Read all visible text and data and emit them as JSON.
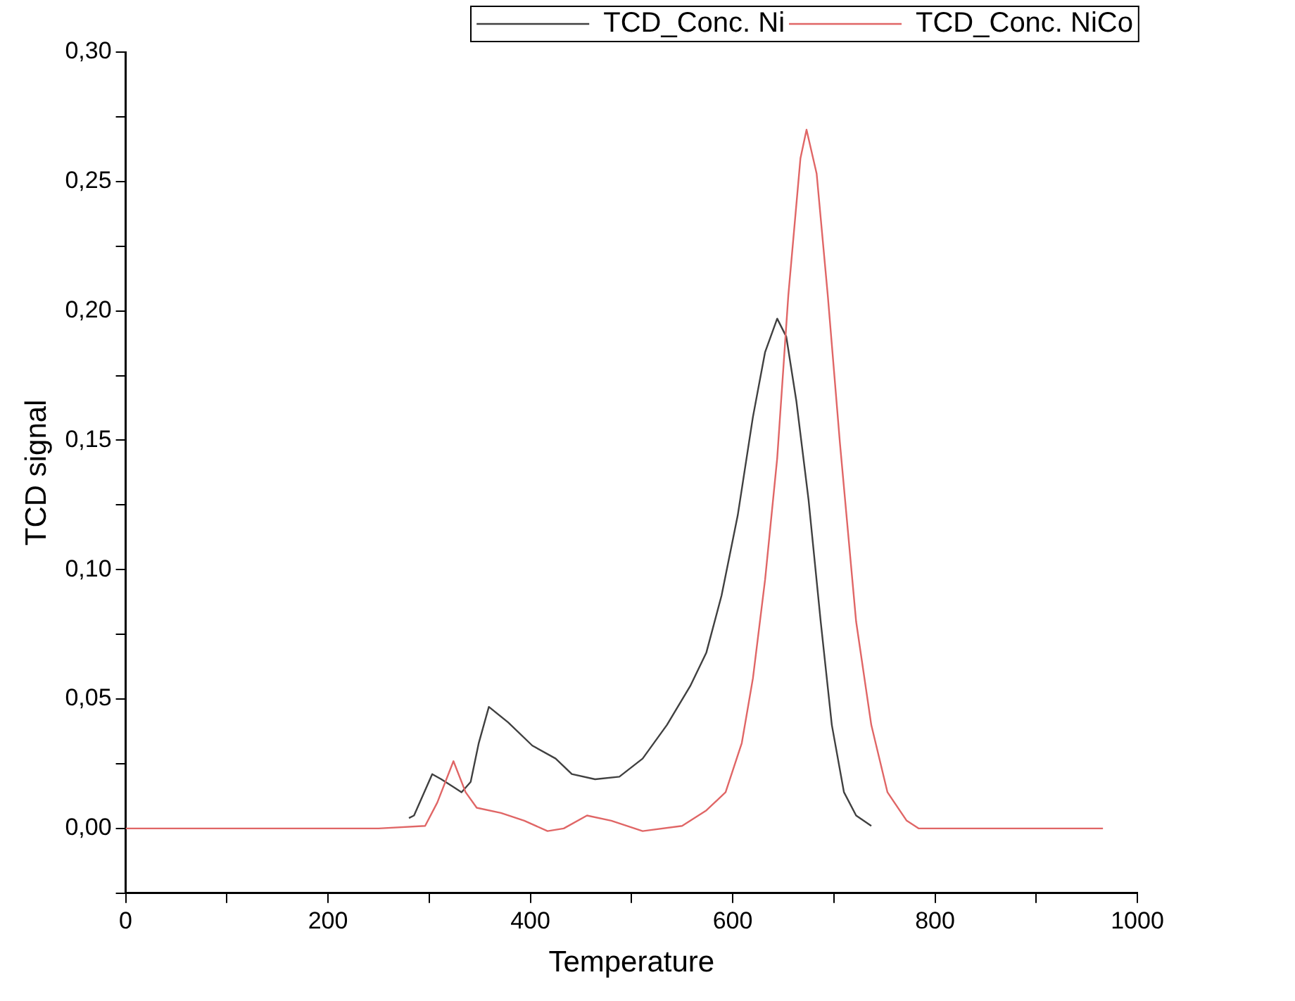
{
  "chart_data": {
    "type": "line",
    "xlabel": "Temperature",
    "ylabel": "TCD signal",
    "xlim": [
      0,
      1000
    ],
    "ylim": [
      -0.025,
      0.3
    ],
    "xticks": [
      0,
      {
        "value": 100,
        "label": null
      },
      200,
      {
        "value": 300,
        "label": null
      },
      400,
      {
        "value": 500,
        "label": null
      },
      600,
      {
        "value": 700,
        "label": null
      },
      800,
      {
        "value": 900,
        "label": null
      },
      1000
    ],
    "yticks": [
      {
        "value": -0.025,
        "label": null
      },
      {
        "value": 0,
        "label": "0,00"
      },
      {
        "value": 0.025,
        "label": null
      },
      {
        "value": 0.05,
        "label": "0,05"
      },
      {
        "value": 0.075,
        "label": null
      },
      {
        "value": 0.1,
        "label": "0,10"
      },
      {
        "value": 0.125,
        "label": null
      },
      {
        "value": 0.15,
        "label": "0,15"
      },
      {
        "value": 0.175,
        "label": null
      },
      {
        "value": 0.2,
        "label": "0,20"
      },
      {
        "value": 0.225,
        "label": null
      },
      {
        "value": 0.25,
        "label": "0,25"
      },
      {
        "value": 0.275,
        "label": null
      },
      {
        "value": 0.3,
        "label": "0,30"
      }
    ],
    "grid": false,
    "legend": "top right",
    "marker": "none",
    "line_style": "solid",
    "series": [
      {
        "name": "TCD_Conc. Ni",
        "color": "#404040",
        "x": [
          280,
          285,
          303,
          312,
          324,
          332,
          341,
          349,
          359,
          378,
          402,
          425,
          441,
          464,
          488,
          511,
          535,
          558,
          574,
          589,
          605,
          620,
          632,
          644,
          653,
          663,
          675,
          687,
          698,
          710,
          722,
          737
        ],
        "values": [
          0.004,
          0.005,
          0.021,
          0.019,
          0.016,
          0.014,
          0.018,
          0.033,
          0.047,
          0.041,
          0.032,
          0.027,
          0.021,
          0.019,
          0.02,
          0.027,
          0.04,
          0.055,
          0.068,
          0.09,
          0.121,
          0.159,
          0.184,
          0.197,
          0.19,
          0.165,
          0.127,
          0.08,
          0.04,
          0.014,
          0.005,
          0.001
        ]
      },
      {
        "name": "TCD_Conc. NiCo",
        "color": "#e06666",
        "x": [
          0,
          50,
          100,
          150,
          200,
          250,
          296,
          308,
          324,
          336,
          347,
          371,
          394,
          417,
          433,
          456,
          480,
          511,
          550,
          574,
          593,
          609,
          620,
          632,
          644,
          655,
          667,
          673,
          683,
          694,
          706,
          722,
          737,
          753,
          772,
          784,
          850,
          900,
          966
        ],
        "values": [
          0,
          0,
          0,
          0,
          0,
          0,
          0.001,
          0.01,
          0.026,
          0.014,
          0.008,
          0.006,
          0.003,
          -0.001,
          0,
          0.005,
          0.003,
          -0.001,
          0.001,
          0.007,
          0.014,
          0.033,
          0.058,
          0.096,
          0.143,
          0.206,
          0.259,
          0.27,
          0.253,
          0.206,
          0.149,
          0.08,
          0.04,
          0.014,
          0.003,
          0,
          0,
          0,
          0
        ]
      }
    ]
  }
}
